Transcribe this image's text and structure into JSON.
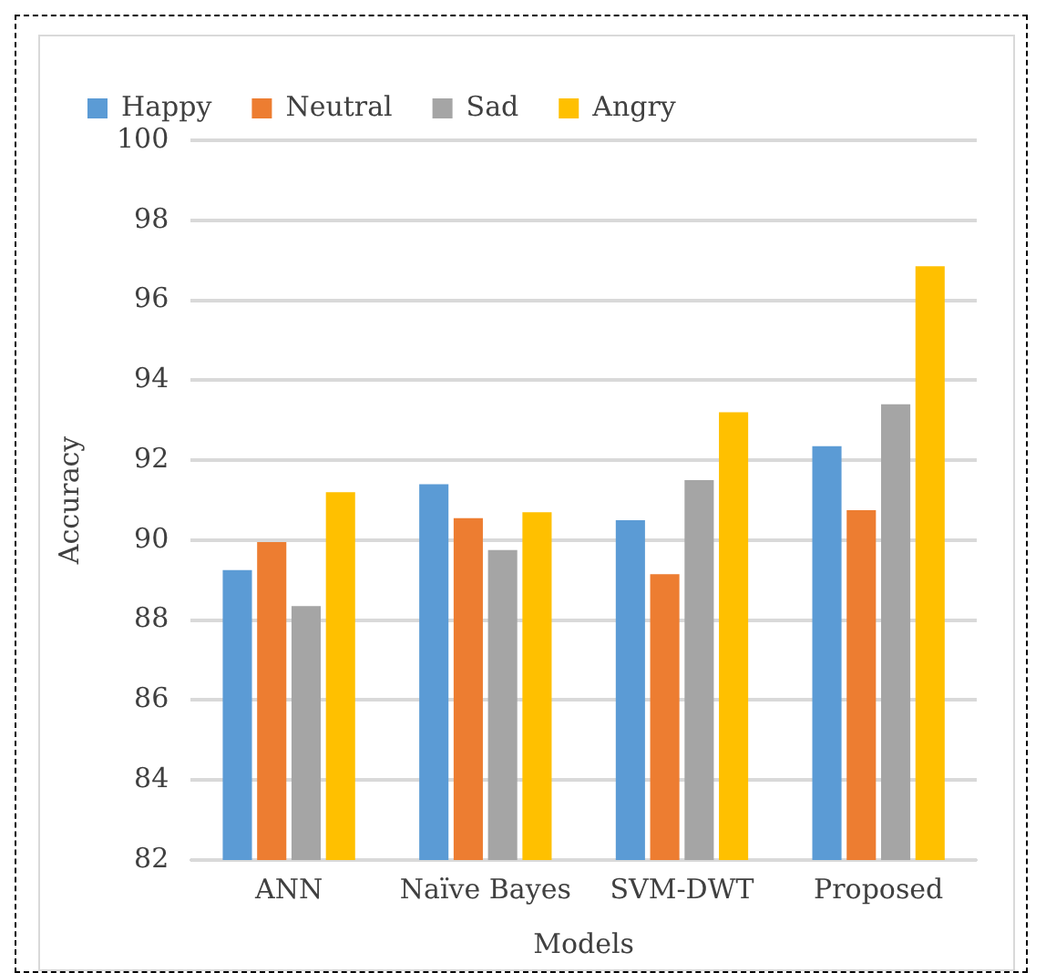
{
  "chart_data": {
    "type": "bar",
    "xlabel": "Models",
    "ylabel": "Accuracy",
    "categories": [
      "ANN",
      "Naïve Bayes",
      "SVM-DWT",
      "Proposed"
    ],
    "series": [
      {
        "name": "Happy",
        "color": "#5b9bd5",
        "values": [
          89.25,
          91.4,
          90.5,
          92.35
        ]
      },
      {
        "name": "Neutral",
        "color": "#ed7d31",
        "values": [
          89.95,
          90.55,
          89.15,
          90.75
        ]
      },
      {
        "name": "Sad",
        "color": "#a5a5a5",
        "values": [
          88.35,
          89.75,
          91.5,
          93.4
        ]
      },
      {
        "name": "Angry",
        "color": "#ffc000",
        "values": [
          91.2,
          90.7,
          93.2,
          96.85
        ]
      }
    ],
    "ylim": [
      82,
      100
    ],
    "yticks": [
      82,
      84,
      86,
      88,
      90,
      92,
      94,
      96,
      98,
      100
    ],
    "grid": "y",
    "legend": "top"
  }
}
